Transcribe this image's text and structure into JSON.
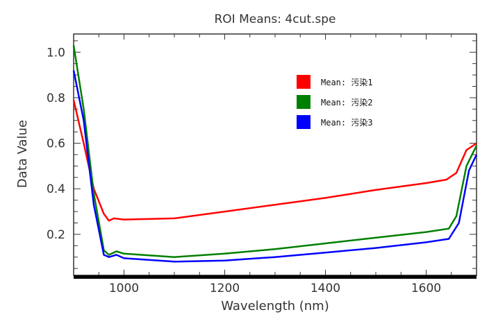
{
  "chart_data": {
    "type": "line",
    "title": "ROI Means: 4cut.spe",
    "xlabel": "Wavelength (nm)",
    "ylabel": "Data Value",
    "xlim": [
      900,
      1700
    ],
    "ylim": [
      0.02,
      1.08
    ],
    "xticks": [
      1000,
      1200,
      1400,
      1600
    ],
    "yticks": [
      0.2,
      0.4,
      0.6,
      0.8,
      1.0
    ],
    "ytick_labels": [
      "0.2",
      "0.4",
      "0.6",
      "0.8",
      "1.0"
    ],
    "grid": false,
    "legend_position": "top-right",
    "series": [
      {
        "name": "Mean: 污染1",
        "color": "#ff0000",
        "x": [
          900,
          920,
          940,
          960,
          970,
          980,
          1000,
          1100,
          1200,
          1300,
          1400,
          1500,
          1600,
          1640,
          1660,
          1680,
          1700
        ],
        "y": [
          0.79,
          0.6,
          0.4,
          0.29,
          0.26,
          0.27,
          0.265,
          0.27,
          0.3,
          0.33,
          0.36,
          0.395,
          0.425,
          0.44,
          0.47,
          0.57,
          0.6
        ]
      },
      {
        "name": "Mean: 污染2",
        "color": "#008000",
        "x": [
          900,
          920,
          940,
          960,
          970,
          985,
          1000,
          1100,
          1200,
          1300,
          1400,
          1500,
          1600,
          1645,
          1660,
          1680,
          1700
        ],
        "y": [
          1.03,
          0.75,
          0.38,
          0.13,
          0.11,
          0.125,
          0.115,
          0.1,
          0.115,
          0.135,
          0.16,
          0.185,
          0.21,
          0.225,
          0.28,
          0.5,
          0.59
        ]
      },
      {
        "name": "Mean: 污染3",
        "color": "#0000ff",
        "x": [
          900,
          920,
          940,
          960,
          970,
          985,
          1000,
          1100,
          1200,
          1300,
          1400,
          1500,
          1600,
          1645,
          1665,
          1685,
          1700
        ],
        "y": [
          0.92,
          0.7,
          0.33,
          0.11,
          0.1,
          0.11,
          0.095,
          0.08,
          0.085,
          0.1,
          0.12,
          0.14,
          0.165,
          0.18,
          0.25,
          0.48,
          0.55
        ]
      }
    ]
  }
}
